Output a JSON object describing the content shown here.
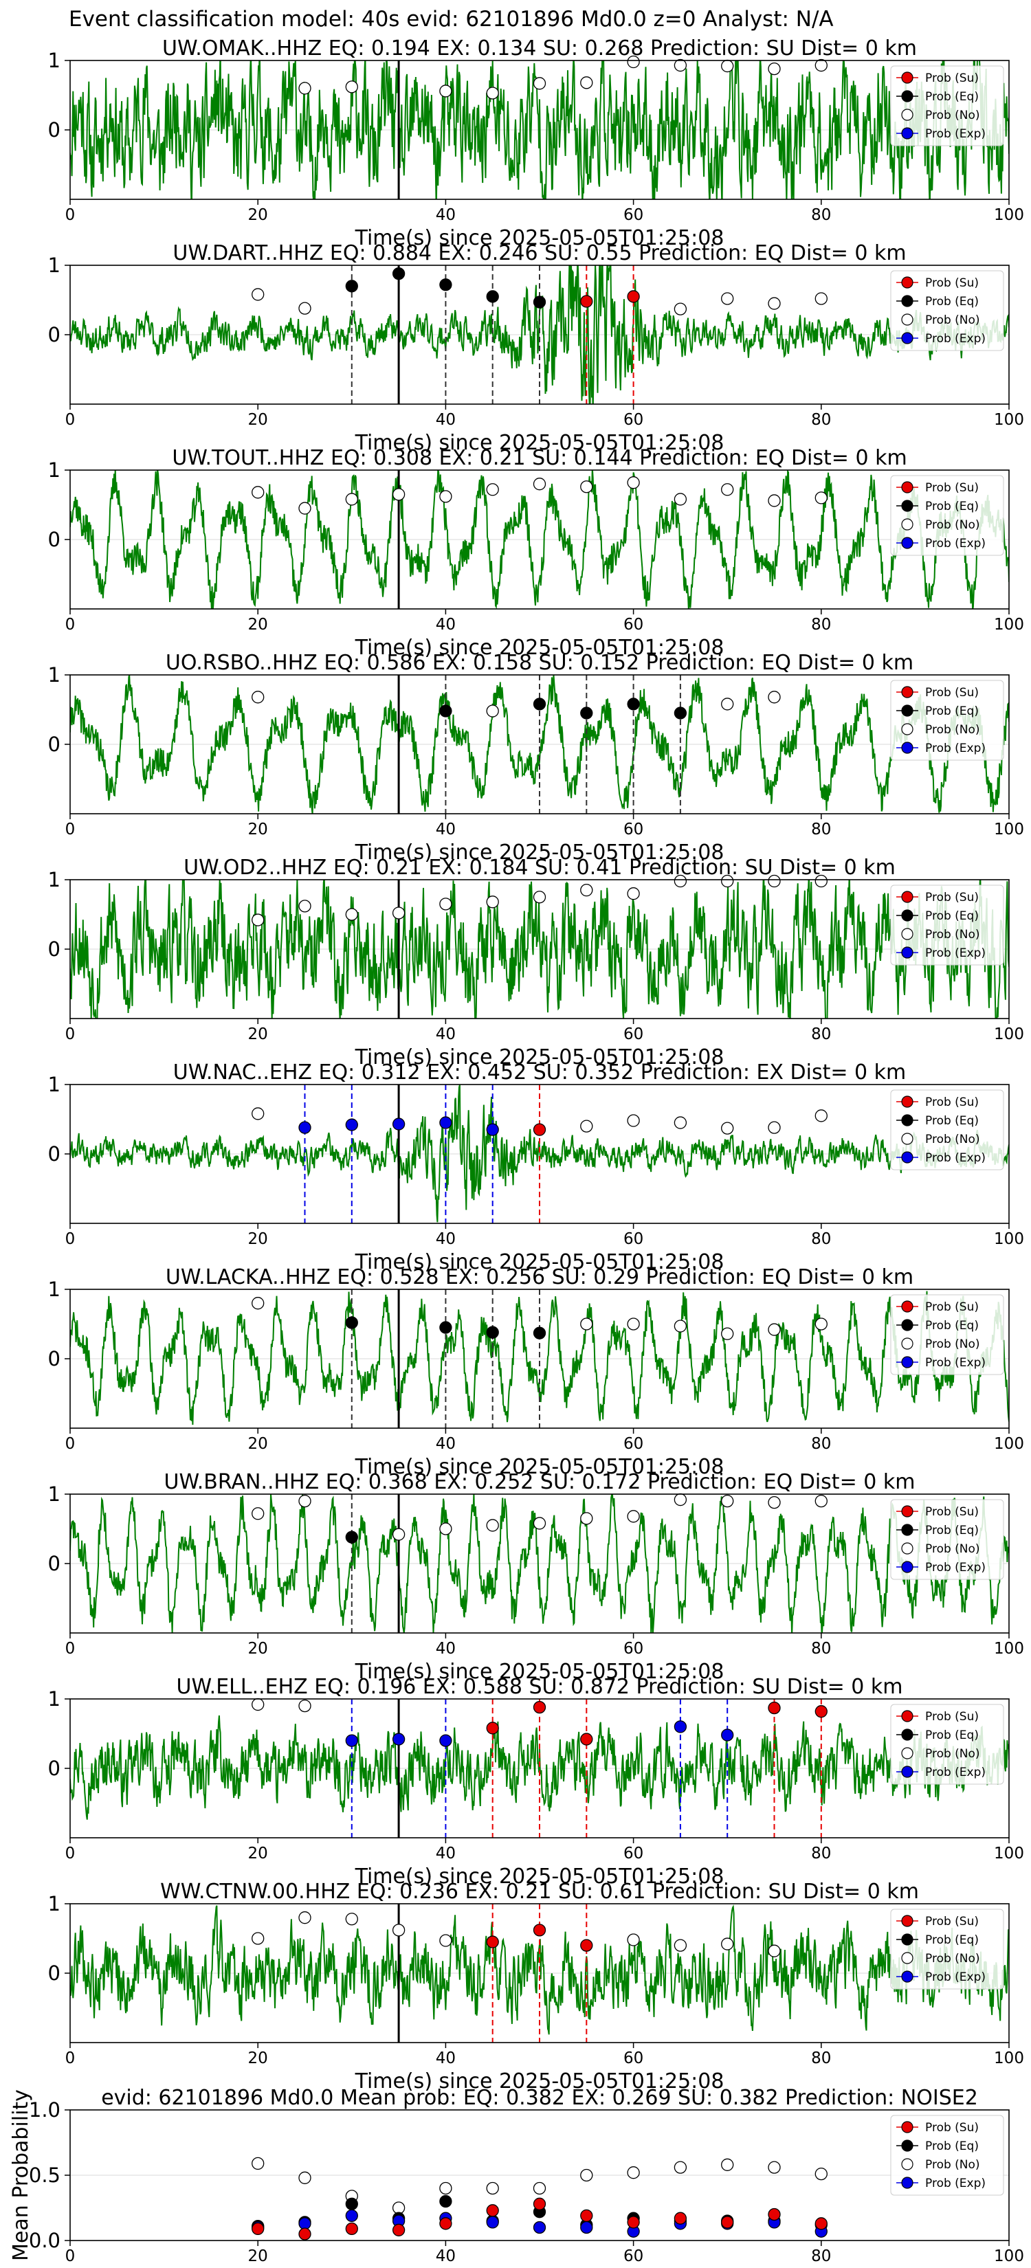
{
  "figure": {
    "suptitle": "Event classification model: 40s evid: 62101896 Md0.0 z=0 Analyst: N/A",
    "xlabel": "Time(s) since 2025-05-05T01:25:08"
  },
  "legend": {
    "placement": "top-right",
    "entries": [
      {
        "label": "Prob (Su)",
        "fill": "#e60000"
      },
      {
        "label": "Prob (Eq)",
        "fill": "#000000"
      },
      {
        "label": "Prob (No)",
        "fill": "#ffffff"
      },
      {
        "label": "Prob (Exp)",
        "fill": "#0000e6"
      }
    ]
  },
  "colors": {
    "waveform": "#008000",
    "su": "#e60000",
    "eq": "#000000",
    "no": "#ffffff",
    "exp": "#0000e6",
    "pick_line": "#000000",
    "gridline": "#d8d8d8"
  },
  "chart_data": [
    {
      "type": "line",
      "title": "UW.OMAK..HHZ   EQ: 0.194  EX: 0.134  SU: 0.268   Prediction: SU    Dist= 0 km",
      "xlim": [
        0,
        100
      ],
      "ylim": [
        -1,
        1
      ],
      "xticks": [
        0,
        20,
        40,
        60,
        80,
        100
      ],
      "yticks": [
        0,
        1
      ],
      "pick_time": 35,
      "waveform": {
        "amplitude": 0.8,
        "style": "noisy",
        "seed": 11
      },
      "series": [
        {
          "name": "Prob (No)",
          "marker_fill": "white",
          "x": [
            25,
            30,
            40,
            45,
            50,
            55,
            60,
            65,
            70,
            75,
            80
          ],
          "y": [
            0.6,
            0.62,
            0.56,
            0.53,
            0.67,
            0.68,
            0.98,
            0.93,
            0.92,
            0.88,
            0.93
          ]
        }
      ],
      "dashed_lines": []
    },
    {
      "type": "line",
      "title": "UW.DART..HHZ   EQ: 0.884  EX: 0.246  SU: 0.55   Prediction: EQ    Dist= 0 km",
      "xlim": [
        0,
        100
      ],
      "ylim": [
        -1,
        1
      ],
      "xticks": [
        0,
        20,
        40,
        60,
        80,
        100
      ],
      "yticks": [
        0,
        1
      ],
      "pick_time": 35,
      "waveform": {
        "amplitude": 0.22,
        "style": "burst",
        "seed": 23,
        "burst_center": 55,
        "burst_width": 6,
        "burst_gain": 3.5
      },
      "series": [
        {
          "name": "Prob (No)",
          "marker_fill": "white",
          "x": [
            20,
            25,
            65,
            70,
            75,
            80
          ],
          "y": [
            0.58,
            0.38,
            0.37,
            0.52,
            0.45,
            0.52
          ]
        },
        {
          "name": "Prob (Eq)",
          "marker_fill": "black",
          "x": [
            30,
            35,
            40,
            45,
            50
          ],
          "y": [
            0.7,
            0.88,
            0.72,
            0.55,
            0.47
          ]
        },
        {
          "name": "Prob (Su)",
          "marker_fill": "red",
          "x": [
            55,
            60
          ],
          "y": [
            0.48,
            0.55
          ]
        }
      ],
      "dashed_lines": [
        {
          "x": 30,
          "color": "black"
        },
        {
          "x": 40,
          "color": "black"
        },
        {
          "x": 45,
          "color": "black"
        },
        {
          "x": 50,
          "color": "black"
        },
        {
          "x": 55,
          "color": "red"
        },
        {
          "x": 60,
          "color": "red"
        }
      ]
    },
    {
      "type": "line",
      "title": "UW.TOUT..HHZ   EQ: 0.308  EX: 0.21  SU: 0.144   Prediction: EQ    Dist= 0 km",
      "xlim": [
        0,
        100
      ],
      "ylim": [
        -1,
        1
      ],
      "xticks": [
        0,
        20,
        40,
        60,
        80,
        100
      ],
      "yticks": [
        0,
        1
      ],
      "pick_time": 35,
      "waveform": {
        "amplitude": 0.78,
        "style": "oscillating",
        "seed": 37,
        "period": 4.2
      },
      "series": [
        {
          "name": "Prob (No)",
          "marker_fill": "white",
          "x": [
            20,
            25,
            30,
            35,
            40,
            45,
            50,
            55,
            60,
            65,
            70,
            75,
            80
          ],
          "y": [
            0.68,
            0.45,
            0.58,
            0.65,
            0.62,
            0.72,
            0.8,
            0.76,
            0.82,
            0.58,
            0.72,
            0.56,
            0.6
          ]
        }
      ],
      "dashed_lines": []
    },
    {
      "type": "line",
      "title": "UO.RSBO..HHZ   EQ: 0.586  EX: 0.158  SU: 0.152   Prediction: EQ    Dist= 0 km",
      "xlim": [
        0,
        100
      ],
      "ylim": [
        -1,
        1
      ],
      "xticks": [
        0,
        20,
        40,
        60,
        80,
        100
      ],
      "yticks": [
        0,
        1
      ],
      "pick_time": 35,
      "waveform": {
        "amplitude": 0.75,
        "style": "oscillating",
        "seed": 41,
        "period": 5.5
      },
      "series": [
        {
          "name": "Prob (No)",
          "marker_fill": "white",
          "x": [
            20,
            45,
            70,
            75
          ],
          "y": [
            0.68,
            0.48,
            0.58,
            0.68
          ]
        },
        {
          "name": "Prob (Eq)",
          "marker_fill": "black",
          "x": [
            40,
            50,
            55,
            60,
            65
          ],
          "y": [
            0.48,
            0.58,
            0.45,
            0.58,
            0.45
          ]
        }
      ],
      "dashed_lines": [
        {
          "x": 40,
          "color": "black"
        },
        {
          "x": 50,
          "color": "black"
        },
        {
          "x": 55,
          "color": "black"
        },
        {
          "x": 60,
          "color": "black"
        },
        {
          "x": 65,
          "color": "black"
        }
      ]
    },
    {
      "type": "line",
      "title": "UW.OD2..HHZ   EQ: 0.21  EX: 0.184  SU: 0.41   Prediction: SU    Dist= 0 km",
      "xlim": [
        0,
        100
      ],
      "ylim": [
        -1,
        1
      ],
      "xticks": [
        0,
        20,
        40,
        60,
        80,
        100
      ],
      "yticks": [
        0,
        1
      ],
      "pick_time": 35,
      "waveform": {
        "amplitude": 0.72,
        "style": "noisy",
        "seed": 53
      },
      "series": [
        {
          "name": "Prob (No)",
          "marker_fill": "white",
          "x": [
            20,
            25,
            30,
            35,
            40,
            45,
            50,
            55,
            60,
            65,
            70,
            75,
            80
          ],
          "y": [
            0.42,
            0.62,
            0.5,
            0.52,
            0.65,
            0.68,
            0.75,
            0.85,
            0.8,
            0.98,
            0.98,
            0.98,
            0.98
          ]
        }
      ],
      "dashed_lines": []
    },
    {
      "type": "line",
      "title": "UW.NAC..EHZ   EQ: 0.312  EX: 0.452  SU: 0.352   Prediction: EX    Dist= 0 km",
      "xlim": [
        0,
        100
      ],
      "ylim": [
        -1,
        1
      ],
      "xticks": [
        0,
        20,
        40,
        60,
        80,
        100
      ],
      "yticks": [
        0,
        1
      ],
      "pick_time": 35,
      "waveform": {
        "amplitude": 0.18,
        "style": "burst",
        "seed": 61,
        "burst_center": 42,
        "burst_width": 5,
        "burst_gain": 3.0
      },
      "series": [
        {
          "name": "Prob (No)",
          "marker_fill": "white",
          "x": [
            20,
            55,
            60,
            65,
            70,
            75,
            80
          ],
          "y": [
            0.58,
            0.4,
            0.48,
            0.45,
            0.37,
            0.38,
            0.55
          ]
        },
        {
          "name": "Prob (Exp)",
          "marker_fill": "blue",
          "x": [
            25,
            30,
            35,
            40,
            45
          ],
          "y": [
            0.38,
            0.42,
            0.43,
            0.45,
            0.35
          ]
        },
        {
          "name": "Prob (Su)",
          "marker_fill": "red",
          "x": [
            50
          ],
          "y": [
            0.35
          ]
        }
      ],
      "dashed_lines": [
        {
          "x": 25,
          "color": "blue"
        },
        {
          "x": 30,
          "color": "blue"
        },
        {
          "x": 40,
          "color": "blue"
        },
        {
          "x": 45,
          "color": "blue"
        },
        {
          "x": 50,
          "color": "red"
        }
      ]
    },
    {
      "type": "line",
      "title": "UW.LACKA..HHZ   EQ: 0.528  EX: 0.256  SU: 0.29   Prediction: EQ    Dist= 0 km",
      "xlim": [
        0,
        100
      ],
      "ylim": [
        -1,
        1
      ],
      "xticks": [
        0,
        20,
        40,
        60,
        80,
        100
      ],
      "yticks": [
        0,
        1
      ],
      "pick_time": 35,
      "waveform": {
        "amplitude": 0.72,
        "style": "oscillating",
        "seed": 71,
        "period": 3.6
      },
      "series": [
        {
          "name": "Prob (No)",
          "marker_fill": "white",
          "x": [
            20,
            55,
            60,
            65,
            70,
            75,
            80
          ],
          "y": [
            0.8,
            0.5,
            0.5,
            0.47,
            0.36,
            0.42,
            0.5
          ]
        },
        {
          "name": "Prob (Eq)",
          "marker_fill": "black",
          "x": [
            30,
            40,
            45,
            50
          ],
          "y": [
            0.52,
            0.45,
            0.38,
            0.37
          ]
        }
      ],
      "dashed_lines": [
        {
          "x": 30,
          "color": "black"
        },
        {
          "x": 40,
          "color": "black"
        },
        {
          "x": 45,
          "color": "black"
        },
        {
          "x": 50,
          "color": "black"
        }
      ]
    },
    {
      "type": "line",
      "title": "UW.BRAN..HHZ   EQ: 0.368  EX: 0.252  SU: 0.172   Prediction: EQ    Dist= 0 km",
      "xlim": [
        0,
        100
      ],
      "ylim": [
        -1,
        1
      ],
      "xticks": [
        0,
        20,
        40,
        60,
        80,
        100
      ],
      "yticks": [
        0,
        1
      ],
      "pick_time": 35,
      "waveform": {
        "amplitude": 0.78,
        "style": "oscillating",
        "seed": 83,
        "period": 3.0
      },
      "series": [
        {
          "name": "Prob (No)",
          "marker_fill": "white",
          "x": [
            20,
            25,
            35,
            40,
            45,
            50,
            55,
            60,
            65,
            70,
            75,
            80
          ],
          "y": [
            0.72,
            0.9,
            0.42,
            0.5,
            0.55,
            0.58,
            0.65,
            0.68,
            0.92,
            0.9,
            0.88,
            0.9
          ]
        },
        {
          "name": "Prob (Eq)",
          "marker_fill": "black",
          "x": [
            30
          ],
          "y": [
            0.38
          ]
        }
      ],
      "dashed_lines": [
        {
          "x": 30,
          "color": "black"
        }
      ]
    },
    {
      "type": "line",
      "title": "UW.ELL..EHZ   EQ: 0.196  EX: 0.588  SU: 0.872   Prediction: SU    Dist= 0 km",
      "xlim": [
        0,
        100
      ],
      "ylim": [
        -1,
        1
      ],
      "xticks": [
        0,
        20,
        40,
        60,
        80,
        100
      ],
      "yticks": [
        0,
        1
      ],
      "pick_time": 35,
      "waveform": {
        "amplitude": 0.42,
        "style": "noisy",
        "seed": 97
      },
      "series": [
        {
          "name": "Prob (No)",
          "marker_fill": "white",
          "x": [
            20,
            25
          ],
          "y": [
            0.92,
            0.9
          ]
        },
        {
          "name": "Prob (Exp)",
          "marker_fill": "blue",
          "x": [
            30,
            35,
            40,
            65,
            70
          ],
          "y": [
            0.4,
            0.42,
            0.4,
            0.6,
            0.48
          ]
        },
        {
          "name": "Prob (Su)",
          "marker_fill": "red",
          "x": [
            45,
            50,
            55,
            75,
            80
          ],
          "y": [
            0.58,
            0.88,
            0.42,
            0.87,
            0.82
          ]
        }
      ],
      "dashed_lines": [
        {
          "x": 30,
          "color": "blue"
        },
        {
          "x": 40,
          "color": "blue"
        },
        {
          "x": 45,
          "color": "red"
        },
        {
          "x": 50,
          "color": "red"
        },
        {
          "x": 55,
          "color": "red"
        },
        {
          "x": 65,
          "color": "blue"
        },
        {
          "x": 70,
          "color": "blue"
        },
        {
          "x": 75,
          "color": "red"
        },
        {
          "x": 80,
          "color": "red"
        }
      ]
    },
    {
      "type": "line",
      "title": "WW.CTNW.00.HHZ   EQ: 0.236  EX: 0.21  SU: 0.61   Prediction: SU    Dist= 0 km",
      "xlim": [
        0,
        100
      ],
      "ylim": [
        -1,
        1
      ],
      "xticks": [
        0,
        20,
        40,
        60,
        80,
        100
      ],
      "yticks": [
        0,
        1
      ],
      "pick_time": 35,
      "waveform": {
        "amplitude": 0.48,
        "style": "noisy",
        "seed": 109
      },
      "series": [
        {
          "name": "Prob (No)",
          "marker_fill": "white",
          "x": [
            20,
            25,
            30,
            35,
            40,
            60,
            65,
            70,
            75
          ],
          "y": [
            0.5,
            0.8,
            0.78,
            0.62,
            0.47,
            0.48,
            0.4,
            0.42,
            0.32
          ]
        },
        {
          "name": "Prob (Su)",
          "marker_fill": "red",
          "x": [
            45,
            50,
            55
          ],
          "y": [
            0.45,
            0.62,
            0.4
          ]
        }
      ],
      "dashed_lines": [
        {
          "x": 45,
          "color": "red"
        },
        {
          "x": 50,
          "color": "red"
        },
        {
          "x": 55,
          "color": "red"
        }
      ]
    },
    {
      "type": "scatter",
      "title": "evid: 62101896  Md0.0   Mean prob:   EQ: 0.382  EX: 0.269  SU: 0.382   Prediction: NOISE2",
      "ylabel": "Mean Probability",
      "xlim": [
        0,
        100
      ],
      "ylim": [
        0,
        1
      ],
      "xticks": [
        0,
        20,
        40,
        60,
        80,
        100
      ],
      "yticks": [
        0.0,
        0.5,
        1.0
      ],
      "ytick_labels": [
        "0.0",
        "0.5",
        "1.0"
      ],
      "series": [
        {
          "name": "Prob (No)",
          "marker_fill": "white",
          "x": [
            20,
            25,
            30,
            35,
            40,
            45,
            50,
            55,
            60,
            65,
            70,
            75,
            80
          ],
          "y": [
            0.59,
            0.48,
            0.34,
            0.25,
            0.4,
            0.4,
            0.4,
            0.5,
            0.52,
            0.56,
            0.58,
            0.56,
            0.51
          ]
        },
        {
          "name": "Prob (Eq)",
          "marker_fill": "black",
          "x": [
            20,
            25,
            30,
            35,
            40,
            45,
            50,
            55,
            60,
            65,
            70,
            75,
            80
          ],
          "y": [
            0.11,
            0.14,
            0.28,
            0.17,
            0.3,
            0.15,
            0.22,
            0.12,
            0.17,
            0.15,
            0.15,
            0.15,
            0.12
          ]
        },
        {
          "name": "Prob (Exp)",
          "marker_fill": "blue",
          "x": [
            20,
            25,
            30,
            35,
            40,
            45,
            50,
            55,
            60,
            65,
            70,
            75,
            80
          ],
          "y": [
            0.1,
            0.13,
            0.19,
            0.15,
            0.17,
            0.14,
            0.1,
            0.1,
            0.07,
            0.13,
            0.13,
            0.14,
            0.07
          ]
        },
        {
          "name": "Prob (Su)",
          "marker_fill": "red",
          "x": [
            20,
            25,
            30,
            35,
            40,
            45,
            50,
            55,
            60,
            65,
            70,
            75,
            80
          ],
          "y": [
            0.09,
            0.05,
            0.09,
            0.08,
            0.13,
            0.23,
            0.28,
            0.19,
            0.14,
            0.17,
            0.14,
            0.2,
            0.13
          ]
        }
      ],
      "dashed_lines": []
    }
  ]
}
